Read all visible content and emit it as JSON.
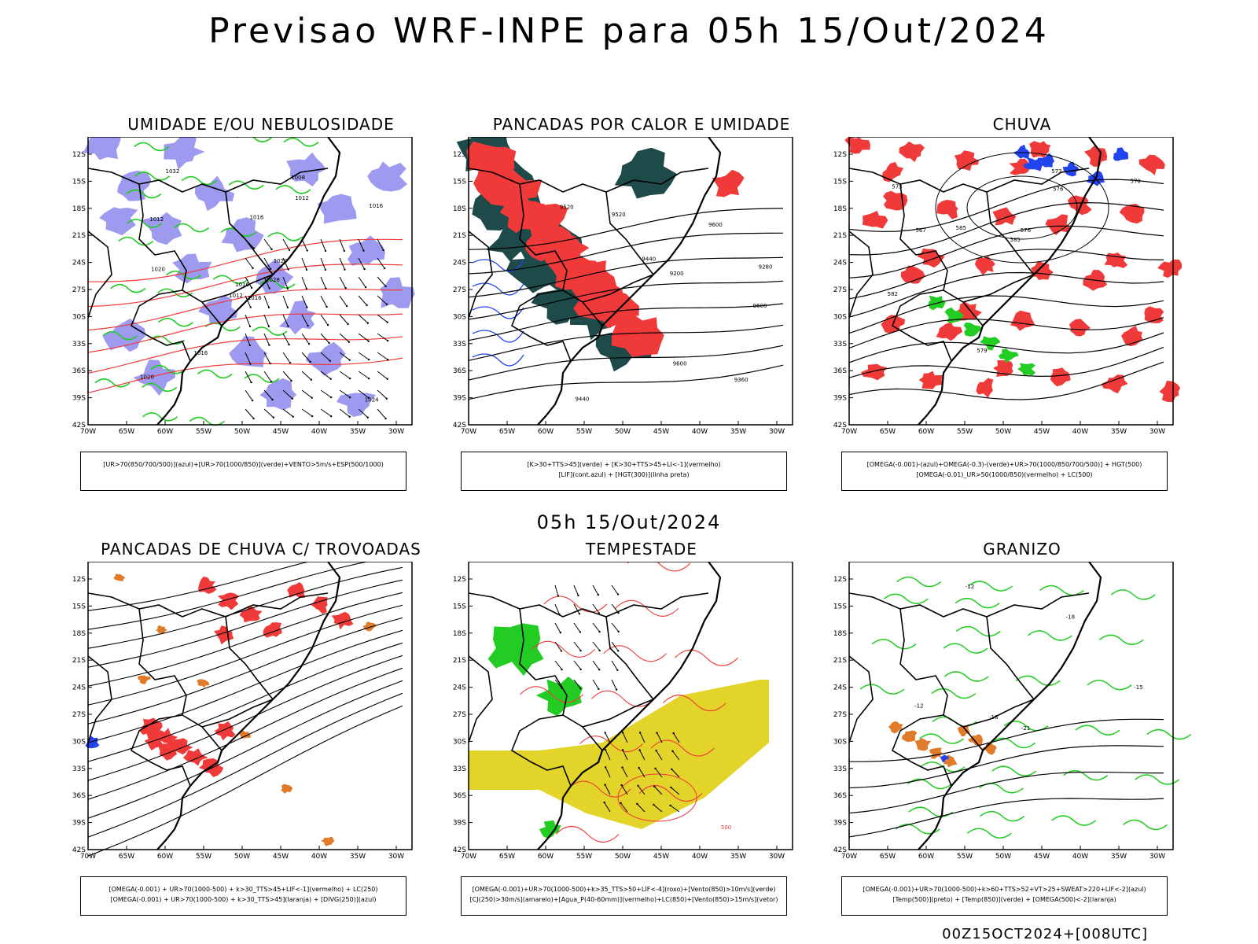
{
  "title": "Previsao WRF-INPE  para 05h 15/Out/2024",
  "mid_title": "05h 15/Out/2024",
  "footer": "00Z15OCT2024+[008UTC]",
  "lat_labels": [
    "12S",
    "15S",
    "18S",
    "21S",
    "24S",
    "27S",
    "30S",
    "33S",
    "36S",
    "39S",
    "42S"
  ],
  "lon_labels": [
    "70W",
    "65W",
    "60W",
    "55W",
    "50W",
    "45W",
    "40W",
    "35W",
    "30W"
  ],
  "colors": {
    "red": "#f03a3a",
    "green": "#22cc22",
    "blue": "#2244ee",
    "lavender": "#9d9af0",
    "dark_teal": "#1f4a4a",
    "yellow": "#e3d42a",
    "orange": "#e07b2a",
    "black": "#000000"
  },
  "panels": [
    {
      "id": "umidade",
      "title": "UMIDADE E/OU NEBULOSIDADE",
      "legend": [
        "[UR>70(850/700/500)](azul)+[UR>70(1000/850)](verde)+VENTO>5m/s+ESP(500/1000)"
      ],
      "contour_labels": [
        "1016",
        "1012",
        "1016",
        "1020",
        "1020",
        "1016",
        "1008",
        "1016",
        "1012",
        "1028",
        "1032",
        "1024",
        "1020",
        "1016",
        "1012"
      ]
    },
    {
      "id": "pancadas-calor",
      "title": "PANCADAS POR CALOR E UMIDADE",
      "legend": [
        "[K>30+TTS>45](verde) + [K>30+TTS>45+LI<-1](vermelho)",
        "[LIF](cont.azul) + [HGT(300)](linha preta)"
      ],
      "contour_labels": [
        "9600",
        "9600",
        "9600",
        "9520",
        "9520",
        "9440",
        "9440",
        "9360",
        "9280",
        "9200"
      ]
    },
    {
      "id": "chuva",
      "title": "CHUVA",
      "legend": [
        "[OMEGA(-0.001)-(azul)+OMEGA(-0.3)-(verde)+UR>70(1000/850/700/500)] + HGT(500)",
        "[OMEGA(-0.01)_UR>50(1000/850)(vermelho) + LC(500)"
      ],
      "contour_labels": [
        "585",
        "582",
        "579",
        "576",
        "573",
        "570",
        "567",
        "585",
        "576",
        "573"
      ]
    },
    {
      "id": "pancadas-trovoadas",
      "title": "PANCADAS DE CHUVA C/ TROVOADAS",
      "legend": [
        "[OMEGA(-0.001) + UR>70(1000-500) + k>30_TTS>45+LIF<-1](vermelho) + LC(250)",
        "[OMEGA(-0.001) + UR>70(1000-500) + k>30_TTS>45](laranja) + [DIVG(250)](azul)"
      ],
      "contour_labels": []
    },
    {
      "id": "tempestade",
      "title": "TEMPESTADE",
      "legend": [
        "[OMEGA(-0.001)+UR>70(1000-500)+k>35_TTS>50+LIF<-4](roxo)+[Vento(850)>10m/s](verde)",
        "[CJ(250)>30m/s](amarelo)+[Agua_P(40-60mm)](vermelho)+LC(850)+[Vento(850)>15m/s](vetor)"
      ],
      "contour_labels": [
        "500"
      ]
    },
    {
      "id": "granizo",
      "title": "GRANIZO",
      "legend": [
        "[OMEGA(-0.001)+UR>70(1000-500)+k>60+TTS>52+VT>25+SWEAT>220+LIF<-2](azul)",
        "[Temp(500)](preto) + [Temp(850)](verde) + [OMEGA(500)<-2](laranja)"
      ],
      "contour_labels": [
        "-12",
        "-18",
        "-15",
        "-18",
        "-21",
        "-12"
      ]
    }
  ]
}
